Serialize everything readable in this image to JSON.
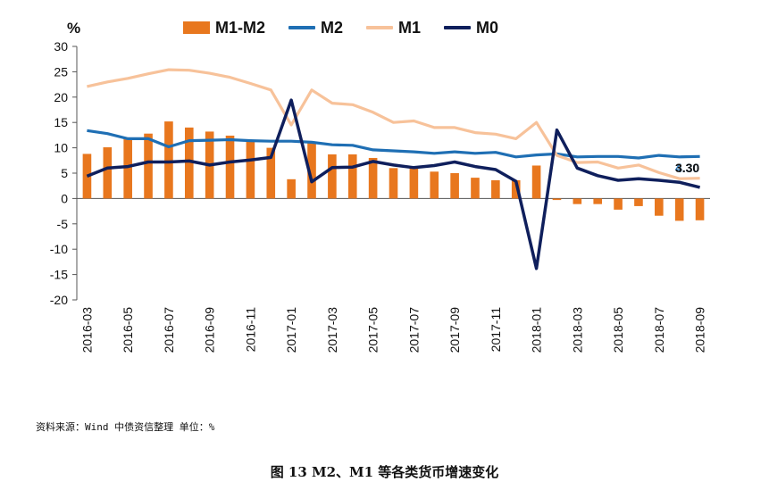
{
  "chart_data": {
    "type": "bar+line",
    "y_unit": "%",
    "ylim": [
      -20,
      30
    ],
    "yticks": [
      30,
      25,
      20,
      15,
      10,
      5,
      0,
      -5,
      -10,
      -15,
      -20
    ],
    "x": [
      "2016-03",
      "2016-04",
      "2016-05",
      "2016-06",
      "2016-07",
      "2016-08",
      "2016-09",
      "2016-10",
      "2016-11",
      "2016-12",
      "2017-01",
      "2017-02",
      "2017-03",
      "2017-04",
      "2017-05",
      "2017-06",
      "2017-07",
      "2017-08",
      "2017-09",
      "2017-10",
      "2017-11",
      "2017-12",
      "2018-01",
      "2018-02",
      "2018-03",
      "2018-04",
      "2018-05",
      "2018-06",
      "2018-07",
      "2018-08",
      "2018-09"
    ],
    "xtick_labels": [
      "2016-03",
      "2016-05",
      "2016-07",
      "2016-09",
      "2016-11",
      "2017-01",
      "2017-03",
      "2017-05",
      "2017-07",
      "2017-09",
      "2017-11",
      "2018-01",
      "2018-03",
      "2018-05",
      "2018-07",
      "2018-09"
    ],
    "series": [
      {
        "name": "M1-M2",
        "kind": "bar",
        "color": "#E8771E",
        "values": [
          8.8,
          10.1,
          11.8,
          12.8,
          15.2,
          14.0,
          13.2,
          12.4,
          11.3,
          10.0,
          3.8,
          10.9,
          8.7,
          8.7,
          8.0,
          6.0,
          6.2,
          5.3,
          5.0,
          4.1,
          3.6,
          3.6,
          6.5,
          -0.3,
          -1.1,
          -1.1,
          -2.2,
          -1.5,
          -3.4,
          -4.4,
          -4.3
        ]
      },
      {
        "name": "M2",
        "kind": "line",
        "color": "#1F6FB4",
        "values": [
          13.4,
          12.8,
          11.8,
          11.8,
          10.2,
          11.4,
          11.5,
          11.6,
          11.4,
          11.3,
          11.3,
          11.1,
          10.6,
          10.5,
          9.6,
          9.4,
          9.2,
          8.9,
          9.2,
          8.9,
          9.1,
          8.2,
          8.6,
          8.8,
          8.2,
          8.3,
          8.3,
          8.0,
          8.5,
          8.2,
          8.3
        ]
      },
      {
        "name": "M1",
        "kind": "line",
        "color": "#F7C29A",
        "values": [
          22.1,
          23.0,
          23.7,
          24.6,
          25.4,
          25.3,
          24.7,
          23.9,
          22.7,
          21.4,
          14.5,
          21.4,
          18.8,
          18.5,
          17.0,
          15.0,
          15.3,
          14.0,
          14.0,
          13.0,
          12.7,
          11.8,
          15.0,
          8.5,
          7.1,
          7.2,
          6.0,
          6.6,
          5.1,
          3.9,
          4.0
        ]
      },
      {
        "name": "M0",
        "kind": "line",
        "color": "#0F1F5C",
        "values": [
          4.4,
          6.0,
          6.3,
          7.2,
          7.2,
          7.4,
          6.6,
          7.2,
          7.6,
          8.1,
          19.4,
          3.3,
          6.1,
          6.2,
          7.3,
          6.6,
          6.1,
          6.5,
          7.2,
          6.3,
          5.7,
          3.4,
          -13.8,
          13.5,
          6.0,
          4.5,
          3.6,
          3.9,
          3.6,
          3.2,
          2.2
        ]
      }
    ],
    "annotations": [
      "4.30",
      "3.30"
    ]
  },
  "legend": [
    {
      "label": "M1-M2",
      "kind": "bar",
      "color": "#E8771E"
    },
    {
      "label": "M2",
      "kind": "line",
      "color": "#1F6FB4"
    },
    {
      "label": "M1",
      "kind": "line",
      "color": "#F7C29A"
    },
    {
      "label": "M0",
      "kind": "line",
      "color": "#0F1F5C"
    }
  ],
  "unit_label": "%",
  "source_text": "资料来源：Wind 中债资信整理 单位：%",
  "caption": "图 13    M2、M1 等各类货币增速变化"
}
